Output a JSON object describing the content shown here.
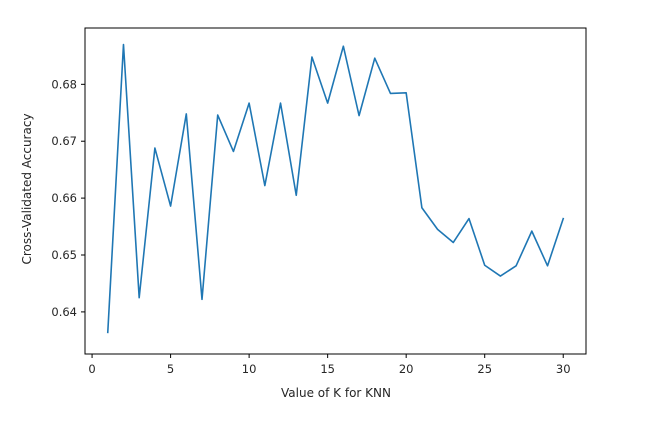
{
  "chart_data": {
    "type": "line",
    "title": "",
    "xlabel": "Value of K for KNN",
    "ylabel": "Cross-Validated Accuracy",
    "xlim": [
      -0.45,
      31.45
    ],
    "ylim": [
      0.6326,
      0.6899
    ],
    "xticks": [
      0,
      5,
      10,
      15,
      20,
      25,
      30
    ],
    "yticks": [
      0.64,
      0.65,
      0.66,
      0.67,
      0.68
    ],
    "ytick_labels": [
      "0.64",
      "0.65",
      "0.66",
      "0.67",
      "0.68"
    ],
    "grid": false,
    "legend": "none",
    "series": [
      {
        "color": "#1f77b4",
        "x": [
          1,
          2,
          3,
          4,
          5,
          6,
          7,
          8,
          9,
          10,
          11,
          12,
          13,
          14,
          15,
          16,
          17,
          18,
          19,
          20,
          21,
          22,
          23,
          24,
          25,
          26,
          27,
          28,
          29,
          30
        ],
        "y": [
          0.6364,
          0.687,
          0.6425,
          0.6688,
          0.6586,
          0.6748,
          0.6422,
          0.6746,
          0.6682,
          0.6767,
          0.6622,
          0.6767,
          0.6605,
          0.6848,
          0.6767,
          0.6867,
          0.6745,
          0.6846,
          0.6784,
          0.6785,
          0.6583,
          0.6545,
          0.6522,
          0.6564,
          0.6482,
          0.6463,
          0.6481,
          0.6542,
          0.6481,
          0.6564
        ]
      }
    ]
  }
}
